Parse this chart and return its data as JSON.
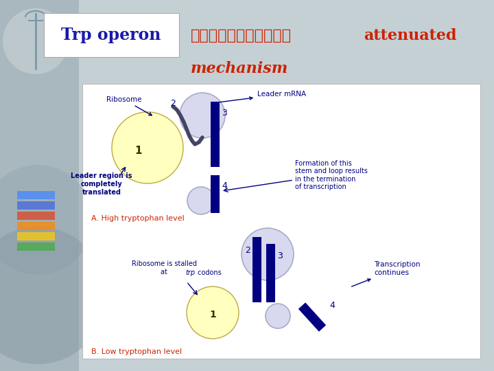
{
  "title_box_text": "Trp operon",
  "title_box_color": "#FFFFFF",
  "title_text_color": "#1a1aaa",
  "thai_title_part1": "การควบคมโดย",
  "thai_title_part2": "attenuated",
  "thai_title_line2": "mechanism",
  "thai_title_color": "#CC2200",
  "bg_color": "#C5D0D5",
  "diagram_bg": "#FFFFFF",
  "label_color_blue": "#000080",
  "label_color_red": "#CC2200",
  "ribosome_color": "#FFFFC0",
  "stem_loop_color": "#D8D8EE",
  "strand_color": "#000080",
  "figsize": [
    7.2,
    5.4
  ],
  "dpi": 100
}
